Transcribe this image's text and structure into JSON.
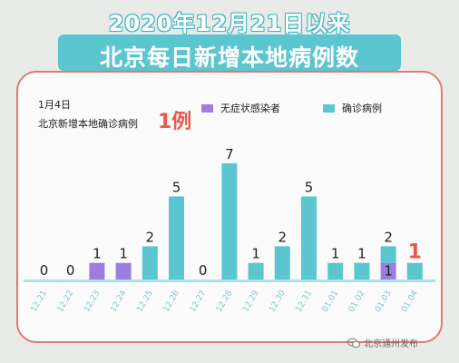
{
  "header": {
    "line1": "2020年12月21日以来",
    "line2": "北京每日新增本地病例数"
  },
  "info": {
    "date": "1月4日",
    "label": "北京新增本地确诊病例",
    "count": "1例"
  },
  "colors": {
    "asymptomatic": "#9b7fe0",
    "confirmed": "#5bc6cf",
    "highlight": "#e9594c",
    "border": "#e07a73"
  },
  "watermark": "北京通州发布",
  "chart_data": {
    "type": "bar",
    "categories": [
      "12.21",
      "12.22",
      "12.23",
      "12.24",
      "12.25",
      "12.26",
      "12.27",
      "12.28",
      "12.29",
      "12.30",
      "12.31",
      "01.01",
      "01.02",
      "01.03",
      "01.04"
    ],
    "series": [
      {
        "name": "无症状感染者",
        "values": [
          0,
          0,
          1,
          1,
          0,
          0,
          0,
          0,
          0,
          0,
          0,
          0,
          0,
          1,
          0
        ]
      },
      {
        "name": "确诊病例",
        "values": [
          0,
          0,
          0,
          0,
          2,
          5,
          0,
          7,
          1,
          2,
          5,
          1,
          1,
          1,
          1
        ]
      }
    ],
    "data_labels": [
      "0",
      "0",
      "1",
      "1",
      "2",
      "5",
      "0",
      "7",
      "1",
      "2",
      "5",
      "1",
      "1",
      "2",
      "1"
    ],
    "inner_labels": [
      {
        "index": 13,
        "text": "1"
      }
    ],
    "highlight_index": 14,
    "stacked": true,
    "ylim": [
      0,
      7
    ],
    "grid": false,
    "legend_position": "top"
  }
}
